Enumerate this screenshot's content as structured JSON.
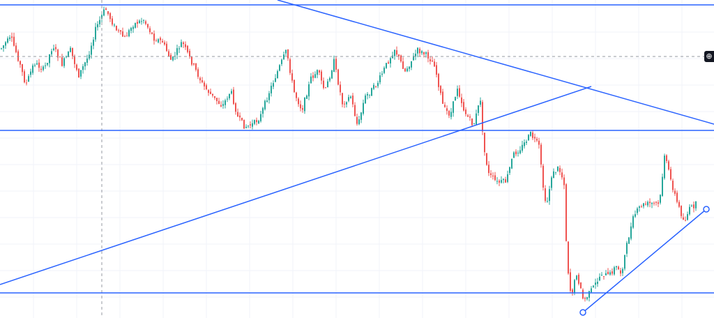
{
  "chart_data": {
    "type": "candlestick",
    "colors": {
      "up": "#26a69a",
      "down": "#ef5350",
      "drawings": "#2962ff",
      "grid": "#f0f3fa",
      "crosshair": "#9598a1"
    },
    "y_range": [
      0,
      456
    ],
    "waypoints": [
      [
        0,
        70
      ],
      [
        8,
        60
      ],
      [
        15,
        55
      ],
      [
        24,
        80
      ],
      [
        36,
        122
      ],
      [
        48,
        90
      ],
      [
        62,
        100
      ],
      [
        75,
        65
      ],
      [
        88,
        92
      ],
      [
        100,
        72
      ],
      [
        112,
        108
      ],
      [
        125,
        82
      ],
      [
        136,
        42
      ],
      [
        150,
        12
      ],
      [
        165,
        42
      ],
      [
        178,
        55
      ],
      [
        190,
        35
      ],
      [
        205,
        28
      ],
      [
        220,
        55
      ],
      [
        232,
        60
      ],
      [
        245,
        88
      ],
      [
        260,
        60
      ],
      [
        272,
        85
      ],
      [
        290,
        122
      ],
      [
        305,
        140
      ],
      [
        318,
        152
      ],
      [
        330,
        130
      ],
      [
        340,
        168
      ],
      [
        350,
        182
      ],
      [
        362,
        178
      ],
      [
        372,
        168
      ],
      [
        385,
        132
      ],
      [
        398,
        100
      ],
      [
        410,
        72
      ],
      [
        420,
        130
      ],
      [
        432,
        158
      ],
      [
        445,
        112
      ],
      [
        455,
        102
      ],
      [
        465,
        132
      ],
      [
        478,
        88
      ],
      [
        490,
        148
      ],
      [
        502,
        138
      ],
      [
        512,
        182
      ],
      [
        522,
        140
      ],
      [
        540,
        120
      ],
      [
        552,
        95
      ],
      [
        565,
        70
      ],
      [
        580,
        102
      ],
      [
        598,
        72
      ],
      [
        612,
        80
      ],
      [
        622,
        92
      ],
      [
        635,
        155
      ],
      [
        645,
        165
      ],
      [
        655,
        125
      ],
      [
        665,
        160
      ],
      [
        678,
        180
      ],
      [
        688,
        142
      ],
      [
        692,
        208
      ],
      [
        700,
        250
      ],
      [
        712,
        262
      ],
      [
        725,
        260
      ],
      [
        735,
        222
      ],
      [
        748,
        210
      ],
      [
        760,
        192
      ],
      [
        772,
        210
      ],
      [
        778,
        268
      ],
      [
        782,
        300
      ],
      [
        790,
        252
      ],
      [
        800,
        240
      ],
      [
        808,
        262
      ],
      [
        812,
        372
      ],
      [
        818,
        425
      ],
      [
        826,
        392
      ],
      [
        836,
        432
      ],
      [
        850,
        412
      ],
      [
        862,
        392
      ],
      [
        872,
        396
      ],
      [
        882,
        382
      ],
      [
        890,
        392
      ],
      [
        900,
        342
      ],
      [
        908,
        310
      ],
      [
        918,
        295
      ],
      [
        930,
        292
      ],
      [
        945,
        292
      ],
      [
        952,
        222
      ],
      [
        962,
        262
      ],
      [
        970,
        290
      ],
      [
        980,
        318
      ],
      [
        988,
        300
      ],
      [
        998,
        292
      ]
    ],
    "horizontal_lines": [
      7,
      187,
      420
    ],
    "trend_lines": [
      {
        "from": [
          398,
          0
        ],
        "to": [
          1024,
          178
        ]
      },
      {
        "from": [
          0,
          408
        ],
        "to": [
          848,
          124
        ]
      },
      {
        "from": [
          836,
          448
        ],
        "to": [
          1013,
          300
        ]
      }
    ],
    "crosshair": {
      "x": 146,
      "y": 81
    },
    "grid": true
  },
  "ui": {
    "zoom_button_icon": "zoom-in-icon",
    "zoom_button_glyph": "⊕"
  }
}
